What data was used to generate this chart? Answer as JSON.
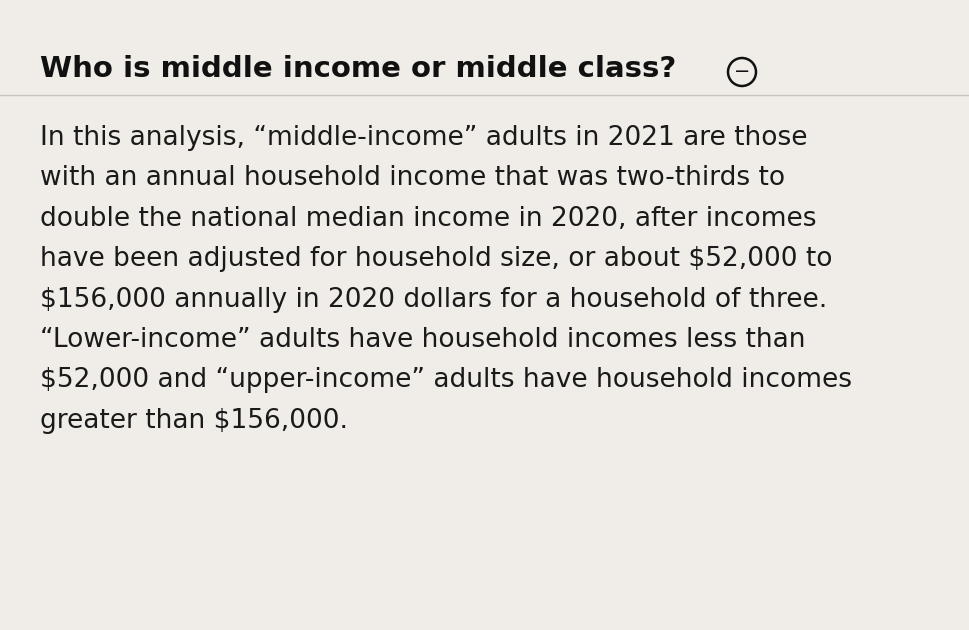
{
  "background_color": "#f0ede8",
  "title": "Who is middle income or middle class?",
  "title_fontsize": 21,
  "title_fontweight": "bold",
  "body_text": "In this analysis, “middle-income” adults in 2021 are those\nwith an annual household income that was two-thirds to\ndouble the national median income in 2020, after incomes\nhave been adjusted for household size, or about $52,000 to\n$156,000 annually in 2020 dollars for a household of three.\n“Lower-income” adults have household incomes less than\n$52,000 and “upper-income” adults have household incomes\ngreater than $156,000.",
  "body_fontsize": 19,
  "body_color": "#1a1a1a",
  "title_color": "#111111",
  "line_color": "#c8c4be"
}
